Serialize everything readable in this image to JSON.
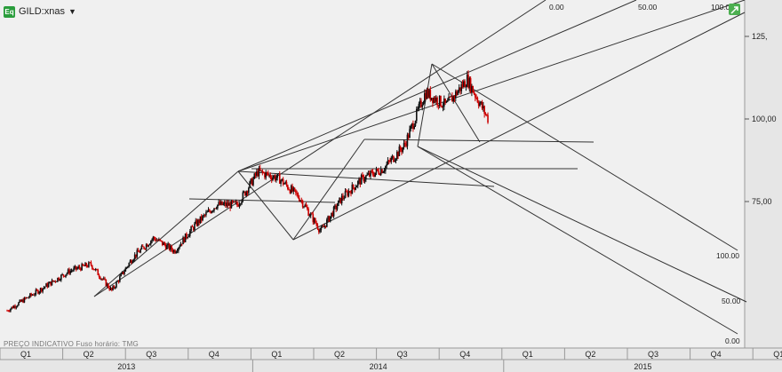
{
  "header": {
    "symbol": "GILD:xnas",
    "app_icon": "eq-logo-icon",
    "dropdown_icon": "caret-down-icon"
  },
  "footer": {
    "note": "PREÇO INDICATIVO    Fuso horário: TMG"
  },
  "chart_data": {
    "type": "candlestick",
    "title": "",
    "xlabel": "",
    "ylabel": "",
    "ylim": [
      40,
      132
    ],
    "y_ticks": [
      {
        "label": "125,",
        "value": 125
      },
      {
        "label": "100,00",
        "value": 100
      },
      {
        "label": "75,00",
        "value": 75
      }
    ],
    "x_quarters": [
      "Q1",
      "Q2",
      "Q3",
      "Q4",
      "Q1",
      "Q2",
      "Q3",
      "Q4",
      "Q1",
      "Q2",
      "Q3",
      "Q4",
      "Q1"
    ],
    "x_years": [
      "2013",
      "2014",
      "2015"
    ],
    "price_path": [
      {
        "x": "Jan 2013",
        "y": 42
      },
      {
        "x": "Mar 2013",
        "y": 50
      },
      {
        "x": "Apr 2013",
        "y": 54
      },
      {
        "x": "May 2013",
        "y": 56
      },
      {
        "x": "Jun 2013",
        "y": 48
      },
      {
        "x": "Jul 2013",
        "y": 58
      },
      {
        "x": "Aug 2013",
        "y": 64
      },
      {
        "x": "Sep 2013",
        "y": 60
      },
      {
        "x": "Oct 2013",
        "y": 68
      },
      {
        "x": "Nov 2013",
        "y": 74
      },
      {
        "x": "Dec 2013",
        "y": 74
      },
      {
        "x": "Jan 2014",
        "y": 84
      },
      {
        "x": "Feb 2014",
        "y": 82
      },
      {
        "x": "Mar 2014",
        "y": 76
      },
      {
        "x": "Apr 2014",
        "y": 66
      },
      {
        "x": "May 2014",
        "y": 76
      },
      {
        "x": "Jun 2014",
        "y": 82
      },
      {
        "x": "Jul 2014",
        "y": 85
      },
      {
        "x": "Aug 2014",
        "y": 92
      },
      {
        "x": "Sep 2014",
        "y": 108
      },
      {
        "x": "Oct 2014",
        "y": 104
      },
      {
        "x": "Nov 2014",
        "y": 112
      },
      {
        "x": "Dec 2014",
        "y": 100
      }
    ],
    "pitchfork_labels": [
      {
        "text": "0.00",
        "position": "top"
      },
      {
        "text": "50.00",
        "position": "top"
      },
      {
        "text": "100.00",
        "position": "top"
      },
      {
        "text": "100.00",
        "position": "lower-right"
      },
      {
        "text": "50.00",
        "position": "lower-right"
      },
      {
        "text": "0.00",
        "position": "lower-right"
      }
    ],
    "colors": {
      "up": "#111111",
      "down": "#cc0000",
      "lines": "#333333",
      "background": "#f0f0f0",
      "axis_panel": "#e6e6e6",
      "corner_icon": "#4caf50"
    },
    "grid": false,
    "legend": "none"
  }
}
